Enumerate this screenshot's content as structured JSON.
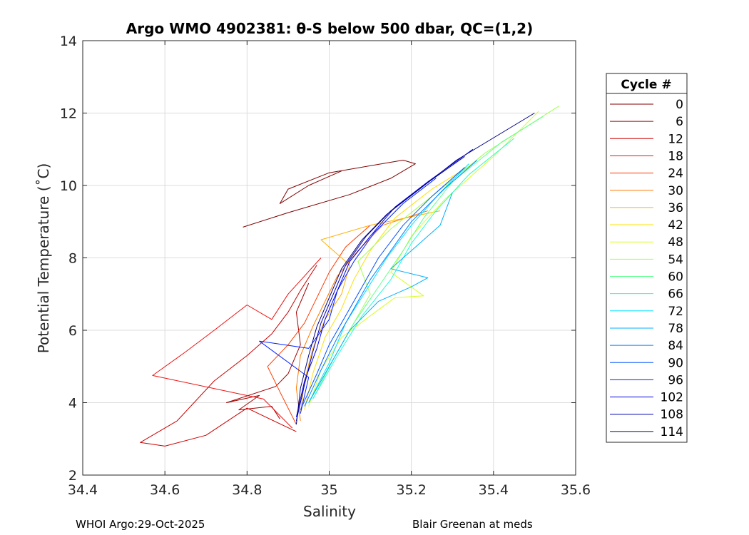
{
  "chart_data": {
    "type": "line",
    "title": "Argo WMO 4902381: θ-S below 500 dbar,  QC=(1,2)",
    "xlabel": "Salinity",
    "ylabel": "Potential Temperature (˚C)",
    "xlim": [
      34.4,
      35.6
    ],
    "ylim": [
      2,
      14
    ],
    "xticks": [
      "34.4",
      "34.6",
      "34.8",
      "35",
      "35.2",
      "35.4",
      "35.6"
    ],
    "yticks": [
      "2",
      "4",
      "6",
      "8",
      "10",
      "12",
      "14"
    ],
    "grid": true,
    "legend": {
      "title": "Cycle #",
      "position": "right-outside"
    },
    "colormap": "jet",
    "series": [
      {
        "name": "0",
        "color": "#800000",
        "points": [
          [
            34.79,
            8.85
          ],
          [
            34.9,
            9.25
          ],
          [
            35.05,
            9.75
          ],
          [
            35.15,
            10.2
          ],
          [
            35.21,
            10.6
          ],
          [
            35.18,
            10.7
          ],
          [
            35.0,
            10.35
          ],
          [
            34.9,
            9.9
          ],
          [
            34.88,
            9.5
          ],
          [
            34.95,
            10.0
          ],
          [
            35.03,
            10.4
          ]
        ]
      },
      {
        "name": "6",
        "color": "#a00000",
        "points": [
          [
            34.88,
            3.55
          ],
          [
            34.86,
            3.9
          ],
          [
            34.78,
            3.8
          ],
          [
            34.83,
            4.2
          ],
          [
            34.75,
            4.0
          ],
          [
            34.87,
            4.45
          ],
          [
            34.9,
            4.8
          ],
          [
            34.93,
            5.6
          ],
          [
            34.92,
            6.5
          ],
          [
            34.95,
            7.3
          ]
        ]
      },
      {
        "name": "12",
        "color": "#cc0000",
        "points": [
          [
            34.92,
            3.2
          ],
          [
            34.8,
            3.85
          ],
          [
            34.7,
            3.1
          ],
          [
            34.6,
            2.8
          ],
          [
            34.54,
            2.9
          ],
          [
            34.63,
            3.5
          ],
          [
            34.72,
            4.6
          ],
          [
            34.8,
            5.3
          ],
          [
            34.86,
            5.9
          ],
          [
            34.9,
            6.5
          ],
          [
            34.93,
            7.1
          ],
          [
            34.97,
            7.8
          ]
        ]
      },
      {
        "name": "18",
        "color": "#ee1010",
        "points": [
          [
            34.91,
            3.3
          ],
          [
            34.84,
            4.1
          ],
          [
            34.57,
            4.75
          ],
          [
            34.65,
            5.4
          ],
          [
            34.72,
            6.0
          ],
          [
            34.8,
            6.7
          ],
          [
            34.86,
            6.3
          ],
          [
            34.9,
            7.0
          ],
          [
            34.94,
            7.5
          ],
          [
            34.98,
            8.0
          ]
        ]
      },
      {
        "name": "24",
        "color": "#ff3a00",
        "points": [
          [
            34.92,
            3.4
          ],
          [
            34.88,
            4.3
          ],
          [
            34.85,
            5.0
          ],
          [
            34.9,
            5.6
          ],
          [
            34.94,
            6.2
          ],
          [
            34.97,
            6.9
          ],
          [
            35.0,
            7.6
          ],
          [
            35.04,
            8.3
          ],
          [
            35.1,
            8.9
          ]
        ]
      },
      {
        "name": "30",
        "color": "#ff7a00",
        "points": [
          [
            34.93,
            3.5
          ],
          [
            34.92,
            4.4
          ],
          [
            34.93,
            5.3
          ],
          [
            34.96,
            6.1
          ],
          [
            34.99,
            6.8
          ],
          [
            35.02,
            7.5
          ],
          [
            35.07,
            8.2
          ],
          [
            35.13,
            8.9
          ],
          [
            35.24,
            9.3
          ]
        ]
      },
      {
        "name": "36",
        "color": "#ffb000",
        "points": [
          [
            34.93,
            3.7
          ],
          [
            34.94,
            4.6
          ],
          [
            34.96,
            5.5
          ],
          [
            34.99,
            6.3
          ],
          [
            35.03,
            7.0
          ],
          [
            35.05,
            7.8
          ],
          [
            34.98,
            8.5
          ],
          [
            35.1,
            8.9
          ],
          [
            35.27,
            9.3
          ]
        ]
      },
      {
        "name": "42",
        "color": "#ffe000",
        "points": [
          [
            34.94,
            3.8
          ],
          [
            34.96,
            4.8
          ],
          [
            34.99,
            5.8
          ],
          [
            35.03,
            6.6
          ],
          [
            35.06,
            7.4
          ],
          [
            35.1,
            8.2
          ],
          [
            35.16,
            9.1
          ],
          [
            35.25,
            9.9
          ],
          [
            35.35,
            10.6
          ]
        ]
      },
      {
        "name": "48",
        "color": "#d8ff20",
        "points": [
          [
            34.95,
            3.9
          ],
          [
            34.98,
            4.9
          ],
          [
            35.03,
            5.8
          ],
          [
            35.1,
            6.4
          ],
          [
            35.16,
            6.9
          ],
          [
            35.23,
            6.95
          ],
          [
            35.15,
            7.6
          ],
          [
            35.2,
            8.6
          ],
          [
            35.28,
            9.6
          ],
          [
            35.4,
            10.8
          ],
          [
            35.51,
            12.05
          ]
        ]
      },
      {
        "name": "54",
        "color": "#a0ff50",
        "points": [
          [
            34.95,
            4.0
          ],
          [
            35.0,
            5.0
          ],
          [
            35.05,
            6.0
          ],
          [
            35.1,
            7.0
          ],
          [
            35.07,
            7.9
          ],
          [
            35.15,
            8.8
          ],
          [
            35.25,
            9.7
          ],
          [
            35.38,
            10.9
          ],
          [
            35.56,
            12.2
          ]
        ]
      },
      {
        "name": "60",
        "color": "#60ff90",
        "points": [
          [
            34.96,
            4.1
          ],
          [
            35.01,
            5.2
          ],
          [
            35.06,
            6.2
          ],
          [
            35.12,
            7.2
          ],
          [
            35.18,
            8.2
          ],
          [
            35.23,
            9.1
          ],
          [
            35.3,
            10.1
          ],
          [
            35.42,
            11.2
          ],
          [
            35.52,
            11.9
          ]
        ]
      },
      {
        "name": "66",
        "color": "#20ffd0",
        "points": [
          [
            34.96,
            4.1
          ],
          [
            35.02,
            5.3
          ],
          [
            35.08,
            6.4
          ],
          [
            35.15,
            7.4
          ],
          [
            35.2,
            8.4
          ],
          [
            35.26,
            9.3
          ],
          [
            35.34,
            10.3
          ],
          [
            35.45,
            11.3
          ]
        ]
      },
      {
        "name": "72",
        "color": "#00e0ff",
        "points": [
          [
            34.95,
            4.0
          ],
          [
            35.0,
            5.1
          ],
          [
            35.04,
            6.2
          ],
          [
            35.09,
            7.1
          ],
          [
            35.14,
            8.0
          ],
          [
            35.2,
            8.9
          ],
          [
            35.27,
            9.8
          ],
          [
            35.34,
            10.6
          ]
        ]
      },
      {
        "name": "78",
        "color": "#00b0ff",
        "points": [
          [
            34.95,
            4.0
          ],
          [
            35.0,
            5.0
          ],
          [
            35.05,
            6.0
          ],
          [
            35.12,
            6.8
          ],
          [
            35.2,
            7.2
          ],
          [
            35.24,
            7.45
          ],
          [
            35.15,
            7.7
          ],
          [
            35.22,
            8.4
          ],
          [
            35.27,
            8.9
          ],
          [
            35.3,
            9.8
          ]
        ]
      },
      {
        "name": "84",
        "color": "#0080ff",
        "points": [
          [
            34.94,
            3.9
          ],
          [
            34.98,
            4.9
          ],
          [
            35.02,
            5.8
          ],
          [
            35.06,
            6.6
          ],
          [
            35.1,
            7.4
          ],
          [
            35.15,
            8.2
          ],
          [
            35.2,
            9.0
          ],
          [
            35.28,
            9.9
          ],
          [
            35.36,
            10.7
          ]
        ]
      },
      {
        "name": "90",
        "color": "#0050ff",
        "points": [
          [
            34.93,
            3.8
          ],
          [
            34.97,
            4.8
          ],
          [
            35.0,
            5.6
          ],
          [
            35.04,
            6.4
          ],
          [
            35.08,
            7.2
          ],
          [
            35.12,
            8.0
          ],
          [
            35.18,
            8.9
          ],
          [
            35.25,
            9.7
          ],
          [
            35.33,
            10.5
          ]
        ]
      },
      {
        "name": "96",
        "color": "#0020ff",
        "points": [
          [
            34.93,
            3.7
          ],
          [
            34.95,
            4.7
          ],
          [
            34.83,
            5.7
          ],
          [
            34.95,
            5.5
          ],
          [
            35.0,
            6.3
          ],
          [
            35.02,
            7.1
          ],
          [
            35.06,
            7.9
          ],
          [
            35.11,
            8.7
          ],
          [
            35.18,
            9.5
          ],
          [
            35.26,
            10.2
          ]
        ]
      },
      {
        "name": "102",
        "color": "#0000e0",
        "points": [
          [
            34.92,
            3.6
          ],
          [
            34.94,
            4.6
          ],
          [
            34.97,
            5.5
          ],
          [
            34.99,
            6.3
          ],
          [
            35.02,
            7.1
          ],
          [
            35.05,
            7.9
          ],
          [
            35.1,
            8.6
          ],
          [
            35.16,
            9.4
          ],
          [
            35.24,
            10.1
          ],
          [
            35.35,
            11.0
          ]
        ]
      },
      {
        "name": "108",
        "color": "#0000b0",
        "points": [
          [
            34.92,
            3.5
          ],
          [
            34.94,
            4.5
          ],
          [
            34.96,
            5.4
          ],
          [
            34.98,
            6.2
          ],
          [
            35.01,
            7.0
          ],
          [
            35.04,
            7.8
          ],
          [
            35.09,
            8.6
          ],
          [
            35.15,
            9.3
          ],
          [
            35.23,
            10.0
          ],
          [
            35.33,
            10.8
          ]
        ]
      },
      {
        "name": "114",
        "color": "#000080",
        "points": [
          [
            34.92,
            3.4
          ],
          [
            34.93,
            4.4
          ],
          [
            34.95,
            5.3
          ],
          [
            34.97,
            6.1
          ],
          [
            35.0,
            6.9
          ],
          [
            35.03,
            7.7
          ],
          [
            35.08,
            8.5
          ],
          [
            35.14,
            9.2
          ],
          [
            35.22,
            9.9
          ],
          [
            35.31,
            10.7
          ],
          [
            35.5,
            12.0
          ]
        ]
      }
    ]
  },
  "footer": {
    "left": "WHOI Argo:29-Oct-2025",
    "right": "Blair Greenan at meds"
  }
}
